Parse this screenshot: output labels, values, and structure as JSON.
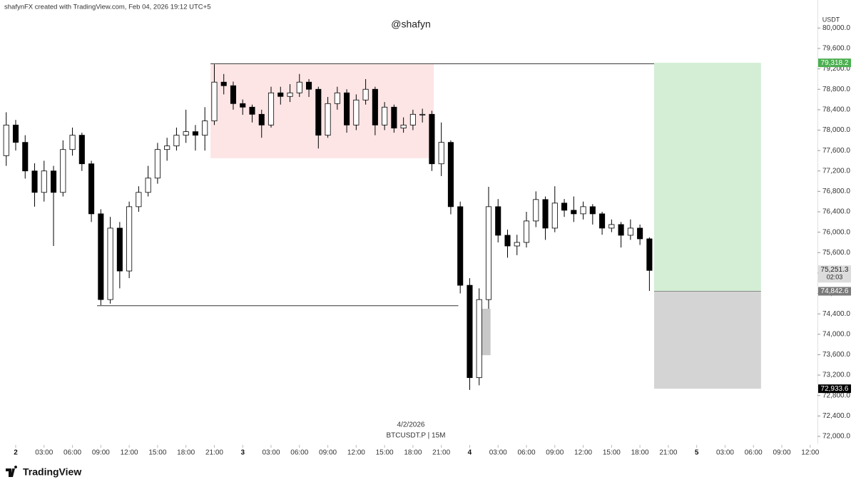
{
  "chart_data": {
    "type": "candlestick",
    "header": "shafynFX created with TradingView.com, Feb 04, 2026 19:12 UTC+5",
    "title": "@shafyn",
    "y_axis_label": "USDT",
    "date_label": "4/2/2026",
    "symbol_label": "BTCUSDT.P | 15M",
    "brand": "TradingView",
    "up_color": "#ffffff",
    "down_color": "#000000",
    "x": [
      -1,
      0,
      1,
      2,
      3,
      4,
      5,
      6,
      7,
      8,
      9,
      10,
      11,
      12,
      13,
      14,
      15,
      16,
      17,
      18,
      19,
      20,
      21,
      22,
      23,
      24,
      25,
      26,
      27,
      28,
      29,
      30,
      31,
      32,
      33,
      34,
      35,
      36,
      37,
      38,
      39,
      40,
      41,
      42,
      43,
      44,
      45,
      46,
      47,
      48,
      49,
      50,
      51,
      52,
      53,
      54,
      55,
      56,
      57,
      58,
      59,
      60,
      61,
      62,
      63,
      64,
      65,
      66,
      67
    ],
    "open": [
      77500,
      78100,
      77760,
      77200,
      76780,
      77200,
      76780,
      77620,
      77900,
      77340,
      76360,
      74680,
      76080,
      75240,
      76500,
      76780,
      77060,
      77620,
      77690,
      77900,
      77970,
      77900,
      78180,
      78940,
      78870,
      78520,
      78450,
      78310,
      78100,
      78730,
      78660,
      78730,
      78940,
      78800,
      77900,
      78520,
      78730,
      78100,
      78590,
      78800,
      78100,
      78450,
      78040,
      78100,
      78310,
      78310,
      77340,
      77760,
      76500,
      74960,
      73150,
      74680,
      76500,
      75940,
      75730,
      75800,
      76220,
      76640,
      76080,
      76570,
      76430,
      76360,
      76500,
      76360,
      76080,
      76150,
      75940,
      76080,
      75870
    ],
    "high": [
      78350,
      78200,
      77900,
      77350,
      77400,
      77300,
      77800,
      78050,
      77950,
      77400,
      76450,
      76300,
      76200,
      76600,
      76900,
      77300,
      77750,
      77850,
      78050,
      78400,
      78100,
      78450,
      79290,
      79100,
      78950,
      78600,
      78500,
      78400,
      78850,
      78850,
      78900,
      79100,
      79000,
      78850,
      78650,
      78850,
      78800,
      78700,
      79000,
      78850,
      78550,
      78500,
      78250,
      78400,
      78420,
      78380,
      78150,
      77800,
      76600,
      75100,
      74900,
      76890,
      76650,
      76050,
      75950,
      76400,
      76800,
      76700,
      76900,
      76650,
      76700,
      76600,
      76550,
      76400,
      76250,
      76200,
      76250,
      76150,
      75900
    ],
    "low": [
      77300,
      77600,
      77050,
      76500,
      76600,
      75730,
      76700,
      77500,
      77200,
      76200,
      74570,
      74600,
      74900,
      75100,
      76400,
      76700,
      76950,
      77400,
      77600,
      77750,
      77600,
      77600,
      78100,
      78700,
      78400,
      78300,
      78150,
      77850,
      78050,
      78500,
      78550,
      78650,
      78650,
      77640,
      77850,
      78400,
      77950,
      78000,
      78500,
      77900,
      78000,
      77950,
      77950,
      78000,
      78150,
      77200,
      77100,
      76350,
      74800,
      72910,
      73000,
      74500,
      75800,
      75500,
      75550,
      75700,
      76100,
      75850,
      76000,
      76300,
      76200,
      76250,
      76150,
      75950,
      76000,
      75700,
      75850,
      75750,
      74850
    ],
    "close": [
      78100,
      77760,
      77200,
      76780,
      77200,
      76780,
      77620,
      77900,
      77340,
      76360,
      74680,
      76080,
      75240,
      76500,
      76780,
      77060,
      77620,
      77690,
      77900,
      77970,
      77900,
      78180,
      78940,
      78870,
      78520,
      78450,
      78310,
      78100,
      78730,
      78660,
      78730,
      78940,
      78800,
      77900,
      78520,
      78730,
      78100,
      78590,
      78800,
      78100,
      78450,
      78040,
      78100,
      78310,
      78310,
      77340,
      77760,
      76500,
      74960,
      73150,
      74680,
      76500,
      75940,
      75730,
      75800,
      76220,
      76640,
      76080,
      76570,
      76430,
      76360,
      76500,
      76360,
      76080,
      76150,
      75940,
      76080,
      75870,
      75251.3
    ],
    "xlim": [
      -1.66,
      84.77
    ],
    "ylim": [
      71860,
      80270
    ],
    "xticks": [
      {
        "value": 0,
        "label": "2"
      },
      {
        "value": 3,
        "label": "03:00"
      },
      {
        "value": 6,
        "label": "06:00"
      },
      {
        "value": 9,
        "label": "09:00"
      },
      {
        "value": 12,
        "label": "12:00"
      },
      {
        "value": 15,
        "label": "15:00"
      },
      {
        "value": 18,
        "label": "18:00"
      },
      {
        "value": 21,
        "label": "21:00"
      },
      {
        "value": 24,
        "label": "3"
      },
      {
        "value": 27,
        "label": "03:00"
      },
      {
        "value": 30,
        "label": "06:00"
      },
      {
        "value": 33,
        "label": "09:00"
      },
      {
        "value": 36,
        "label": "12:00"
      },
      {
        "value": 39,
        "label": "15:00"
      },
      {
        "value": 42,
        "label": "18:00"
      },
      {
        "value": 45,
        "label": "21:00"
      },
      {
        "value": 48,
        "label": "4"
      },
      {
        "value": 51,
        "label": "03:00"
      },
      {
        "value": 54,
        "label": "06:00"
      },
      {
        "value": 57,
        "label": "09:00"
      },
      {
        "value": 60,
        "label": "12:00"
      },
      {
        "value": 63,
        "label": "15:00"
      },
      {
        "value": 66,
        "label": "18:00"
      },
      {
        "value": 69,
        "label": "21:00"
      },
      {
        "value": 72,
        "label": "5"
      },
      {
        "value": 75,
        "label": "03:00"
      },
      {
        "value": 78,
        "label": "06:00"
      },
      {
        "value": 81,
        "label": "09:00"
      },
      {
        "value": 84,
        "label": "12:00"
      }
    ],
    "yticks": [
      {
        "value": 72000,
        "label": "72,000.0"
      },
      {
        "value": 72400,
        "label": "72,400.0"
      },
      {
        "value": 72800,
        "label": "72,800.0"
      },
      {
        "value": 73200,
        "label": "73,200.0"
      },
      {
        "value": 73600,
        "label": "73,600.0"
      },
      {
        "value": 74000,
        "label": "74,000.0"
      },
      {
        "value": 74400,
        "label": "74,400.0"
      },
      {
        "value": 74800,
        "label": "74,800.0"
      },
      {
        "value": 75200,
        "label": "75,200.0"
      },
      {
        "value": 75600,
        "label": "75,600.0"
      },
      {
        "value": 76000,
        "label": "76,000.0"
      },
      {
        "value": 76400,
        "label": "76,400.0"
      },
      {
        "value": 76800,
        "label": "76,800.0"
      },
      {
        "value": 77200,
        "label": "77,200.0"
      },
      {
        "value": 77600,
        "label": "77,600.0"
      },
      {
        "value": 78000,
        "label": "78,000.0"
      },
      {
        "value": 78400,
        "label": "78,400.0"
      },
      {
        "value": 78800,
        "label": "78,800.0"
      },
      {
        "value": 79200,
        "label": "79,200.0"
      },
      {
        "value": 79600,
        "label": "79,600.0"
      },
      {
        "value": 80000,
        "label": "80,000.0"
      }
    ],
    "rectangles": [
      {
        "x": [
          20.6,
          44.2
        ],
        "y": [
          77450,
          79290
        ],
        "color": "#fde5e5"
      },
      {
        "x": [
          48.8,
          50.2
        ],
        "y": [
          73590,
          74500
        ],
        "color": "#c8c8c8"
      }
    ],
    "lines": [
      {
        "x": [
          20.6,
          68.0
        ],
        "y": 79300
      },
      {
        "x": [
          8.6,
          46.8
        ],
        "y": 74560
      }
    ],
    "position": {
      "x": [
        67.5,
        78.8
      ],
      "entry": 74842.6,
      "target": 79318.2,
      "stop": 72933.6,
      "profit_color": "#d3eed5",
      "loss_color": "#d4d4d4"
    },
    "price_labels": [
      {
        "value": 79318.2,
        "label": "79,318.2",
        "color": "#4caf50",
        "text_color": "#ffffff"
      },
      {
        "value": 75251.3,
        "label": "75,251.3",
        "countdown": "02:03",
        "color": "#dcdcdc",
        "text_color": "#222222"
      },
      {
        "value": 74842.6,
        "label": "74,842.6",
        "color": "#7a7a7a",
        "text_color": "#ffffff"
      },
      {
        "value": 72933.6,
        "label": "72,933.6",
        "color": "#000000",
        "text_color": "#ffffff"
      }
    ]
  }
}
